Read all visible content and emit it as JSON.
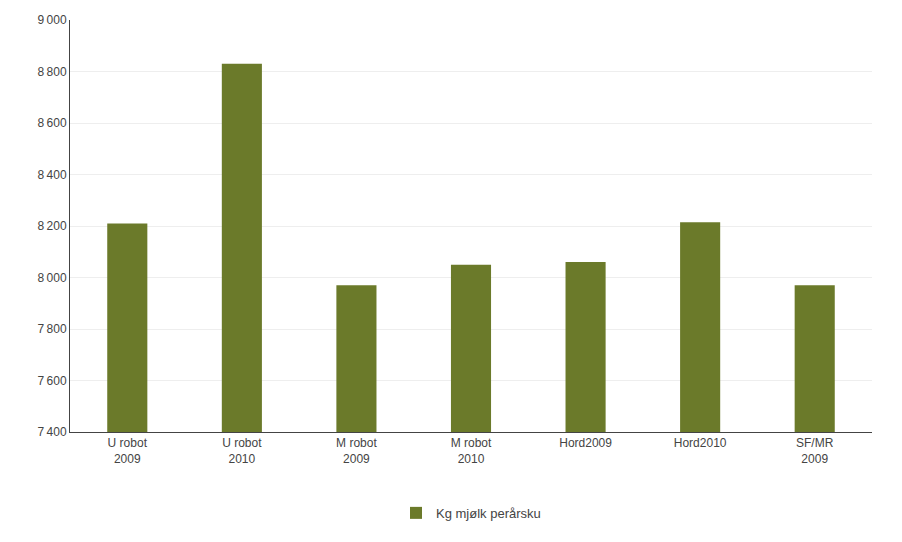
{
  "chart_data": {
    "type": "bar",
    "categories": [
      "U robot\n2009",
      "U robot\n2010",
      "M robot\n2009",
      "M robot\n2010",
      "Hord2009",
      "Hord2010",
      "SF/MR\n2009"
    ],
    "series": [
      {
        "name": "Kg mjølk perårsku",
        "color": "#6b7a2a",
        "values": [
          8210,
          8830,
          7970,
          8050,
          8060,
          8215,
          7970
        ]
      }
    ],
    "ylim": [
      7400,
      9000
    ],
    "yticks": [
      {
        "value": 7400,
        "label": "7 400"
      },
      {
        "value": 7600,
        "label": "7 600"
      },
      {
        "value": 7800,
        "label": "7 800"
      },
      {
        "value": 8000,
        "label": "8 000"
      },
      {
        "value": 8200,
        "label": "8 200"
      },
      {
        "value": 8400,
        "label": "8 400"
      },
      {
        "value": 8600,
        "label": "8 600"
      },
      {
        "value": 8800,
        "label": "8 800"
      },
      {
        "value": 9000,
        "label": "9 000"
      }
    ],
    "grid": true,
    "legend": "bottom"
  }
}
